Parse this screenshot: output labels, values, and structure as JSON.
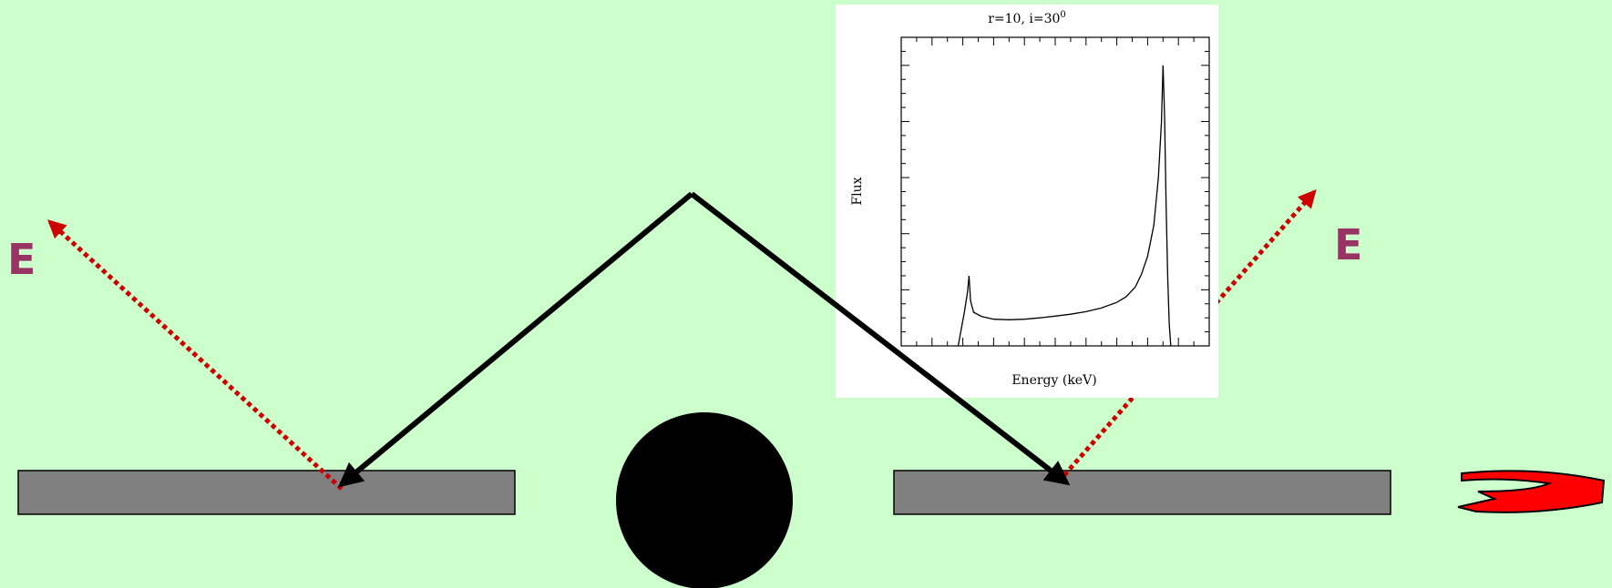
{
  "labels": {
    "left_energy": "E",
    "right_energy": "E"
  },
  "colors": {
    "background": "#ccffcc",
    "disk": "#808080",
    "black_hole": "#000000",
    "reflected_ray": "#cc0000",
    "label": "#993366",
    "disk_icon": "#ff0000"
  },
  "inset_plot": {
    "title_text": "r=10, i=30",
    "title_superscript": "0",
    "xlabel": "Energy (keV)",
    "ylabel": "Flux"
  },
  "chart_data": {
    "type": "line",
    "title": "r=10, i=30⁰",
    "xlabel": "Energy (keV)",
    "ylabel": "Flux",
    "xlim": [
      0,
      10
    ],
    "ylim": [
      0,
      11
    ],
    "grid": false,
    "series": [
      {
        "values": [
          [
            1.85,
            0.0
          ],
          [
            1.95,
            0.6
          ],
          [
            2.05,
            1.2
          ],
          [
            2.15,
            1.9
          ],
          [
            2.2,
            2.5
          ],
          [
            2.25,
            1.6
          ],
          [
            2.35,
            1.2
          ],
          [
            2.6,
            1.05
          ],
          [
            3.0,
            0.95
          ],
          [
            3.5,
            0.93
          ],
          [
            4.0,
            0.95
          ],
          [
            4.5,
            1.0
          ],
          [
            5.0,
            1.06
          ],
          [
            5.5,
            1.13
          ],
          [
            6.0,
            1.22
          ],
          [
            6.5,
            1.35
          ],
          [
            7.0,
            1.55
          ],
          [
            7.3,
            1.75
          ],
          [
            7.6,
            2.1
          ],
          [
            7.8,
            2.55
          ],
          [
            8.0,
            3.2
          ],
          [
            8.2,
            4.3
          ],
          [
            8.35,
            6.0
          ],
          [
            8.45,
            8.0
          ],
          [
            8.5,
            10.0
          ],
          [
            8.55,
            8.2
          ],
          [
            8.6,
            5.0
          ],
          [
            8.65,
            2.5
          ],
          [
            8.7,
            0.8
          ],
          [
            8.75,
            0.0
          ]
        ]
      }
    ]
  }
}
